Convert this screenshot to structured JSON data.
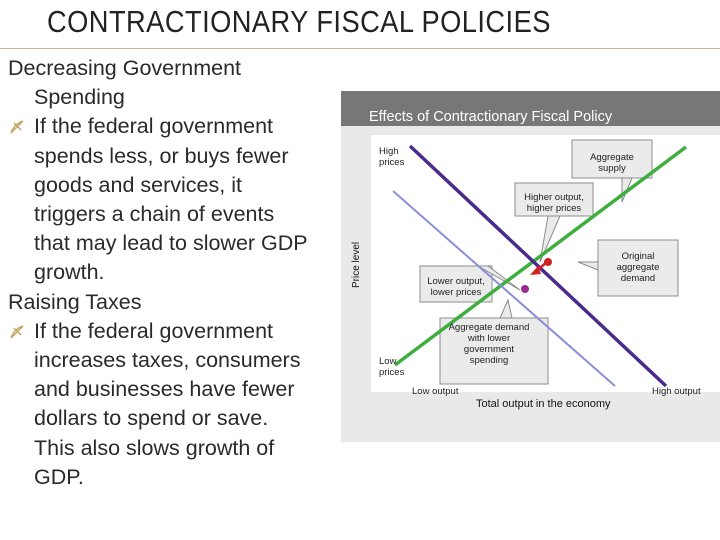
{
  "slide": {
    "title": "CONTRACTIONARY FISCAL POLICIES",
    "section1_heading_line1": "Decreasing Government",
    "section1_heading_line2": "Spending",
    "section1_bullet": [
      "If the federal government",
      "spends less, or buys fewer",
      "goods and services, it",
      "triggers a chain of events",
      "that may lead to slower GDP",
      "growth."
    ],
    "section2_heading": "Raising Taxes",
    "section2_bullet": [
      "If the federal government",
      "increases taxes, consumers",
      "and businesses have fewer",
      "dollars to spend or save.",
      "This also slows growth of",
      "GDP."
    ]
  },
  "figure": {
    "title": "Effects of Contractionary Fiscal Policy",
    "y_axis_label": "Price level",
    "x_axis_label": "Total output in the economy",
    "y_high_label": [
      "High",
      "prices"
    ],
    "y_low_label": [
      "Low",
      "prices"
    ],
    "x_low_label": "Low output",
    "x_high_label": "High output",
    "callouts": {
      "aggregate_supply": [
        "Aggregate",
        "supply"
      ],
      "higher_output": [
        "Higher output,",
        "higher prices"
      ],
      "original_demand": [
        "Original",
        "aggregate",
        "demand"
      ],
      "lower_output": [
        "Lower output,",
        "lower prices"
      ],
      "new_demand": [
        "Aggregate demand",
        "with lower",
        "government",
        "spending"
      ]
    },
    "colors": {
      "supply_line": "#3fae3f",
      "original_demand_line": "#4a2b8c",
      "new_demand_line": "#8a8fd6",
      "equilibrium_original": "#cc2222",
      "equilibrium_new": "#9c2b8f",
      "shift_arrow": "#d62020"
    }
  }
}
